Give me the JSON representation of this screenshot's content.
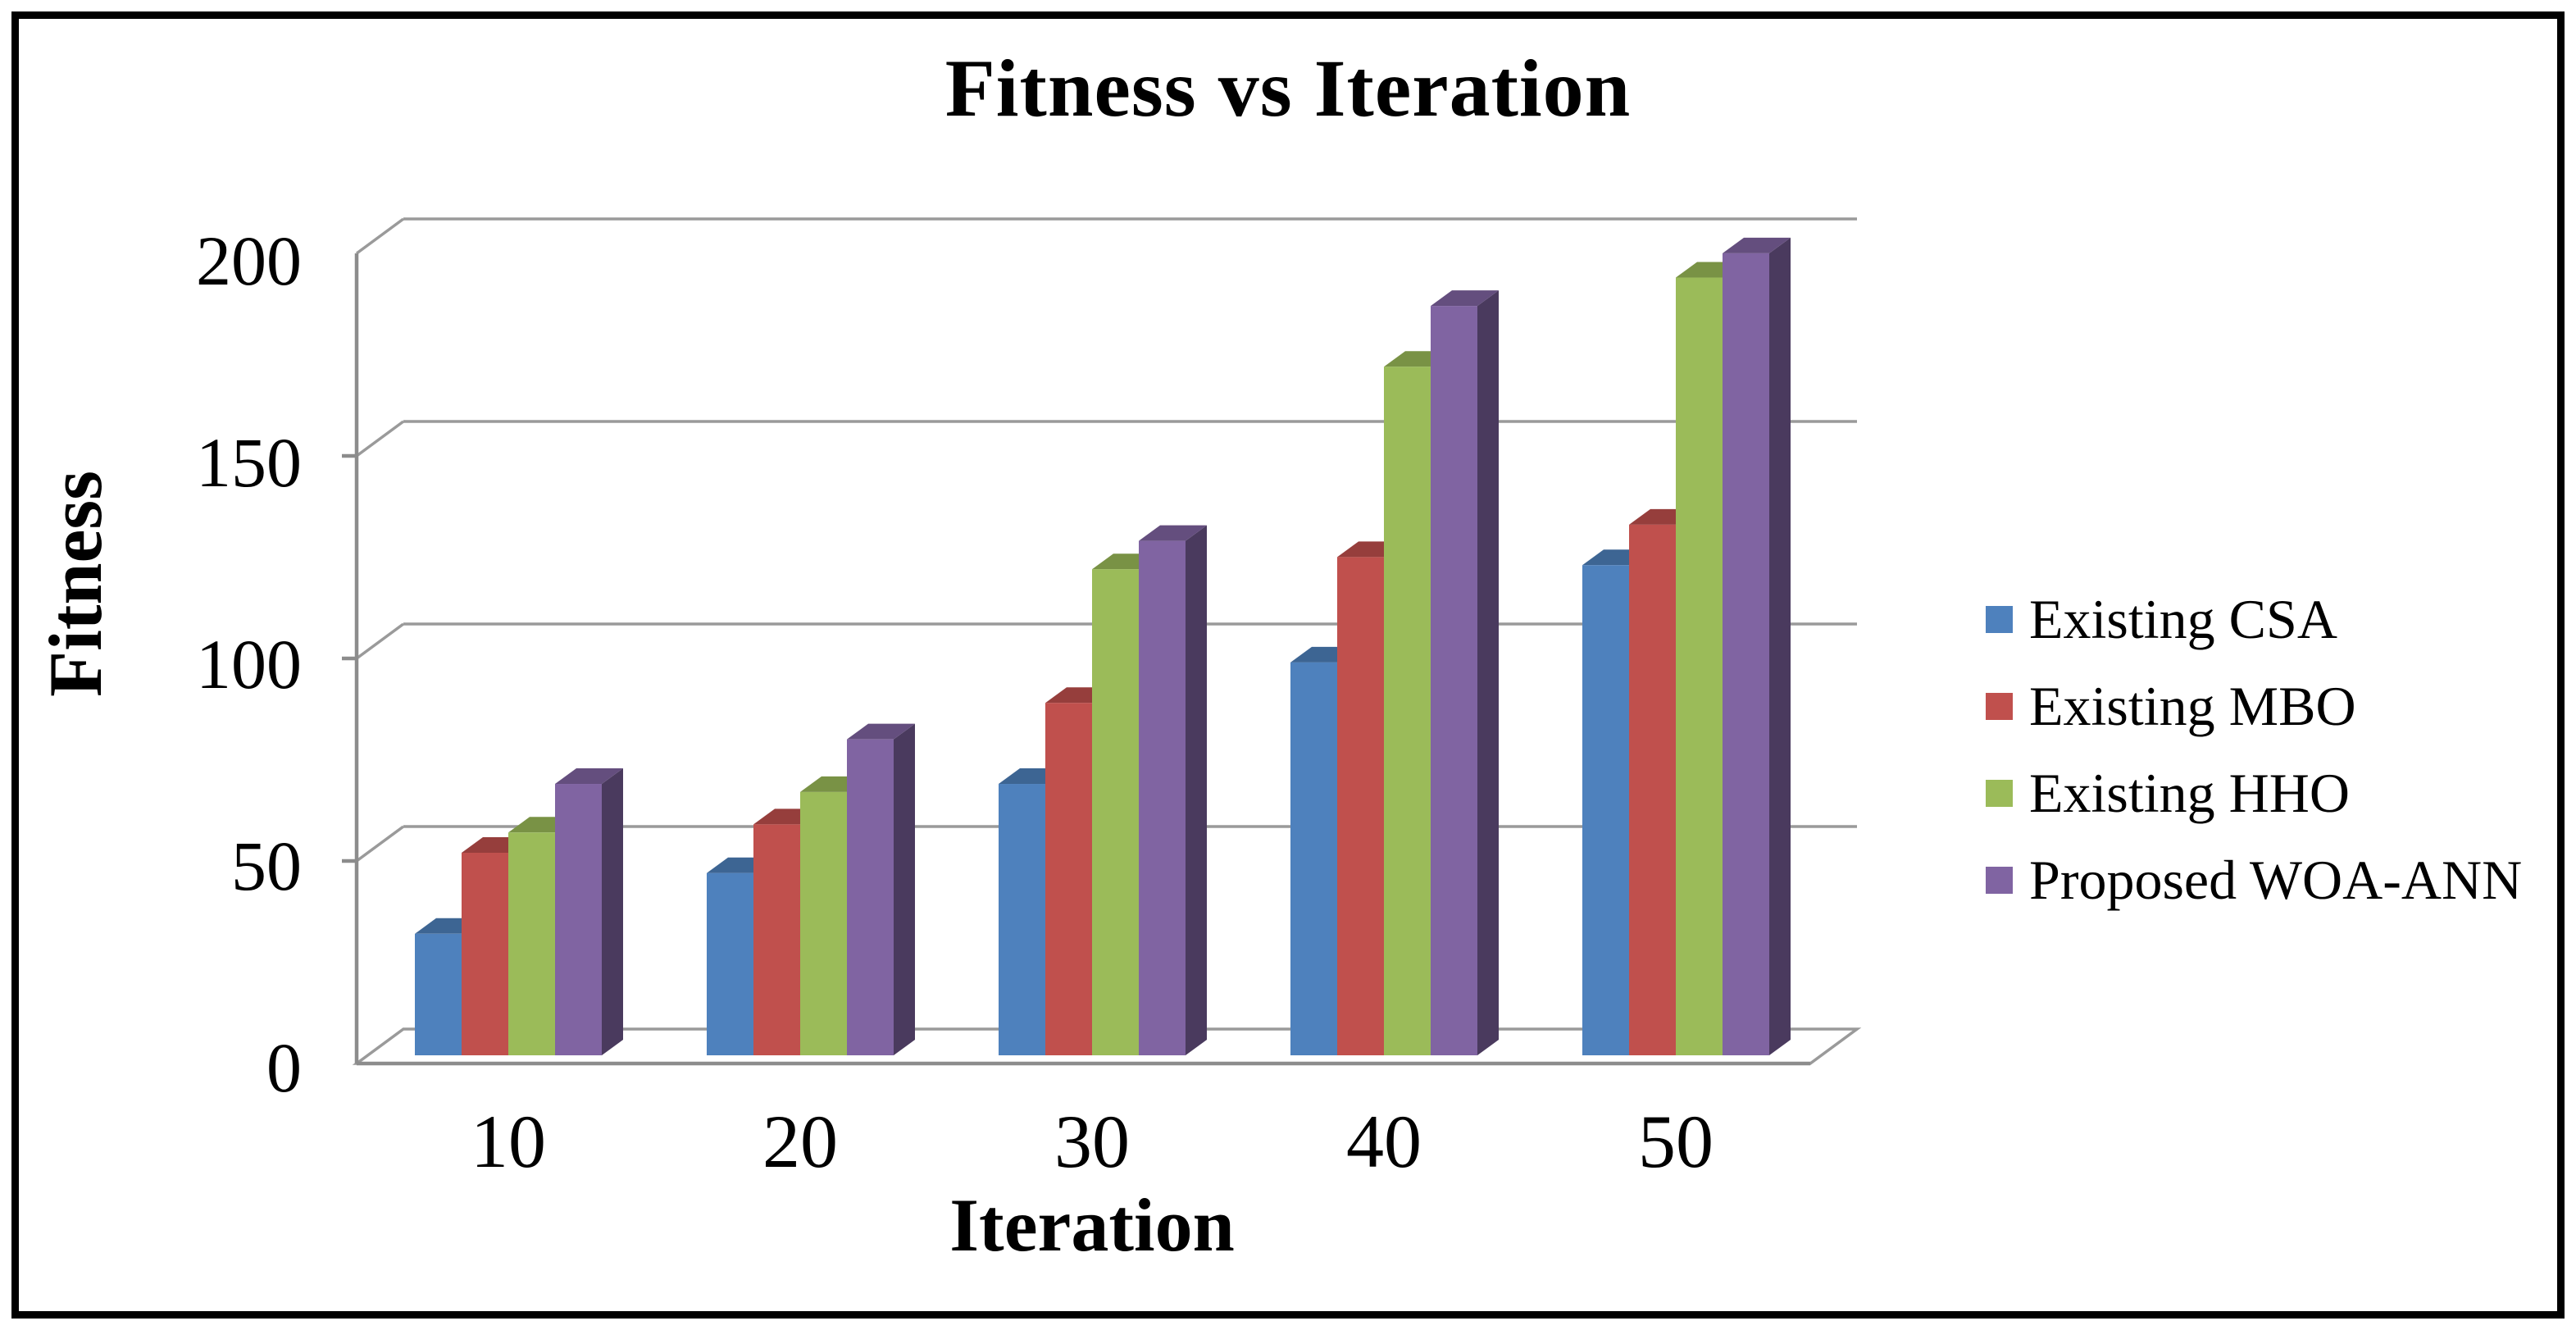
{
  "title": "Fitness vs Iteration",
  "chart_data": {
    "type": "bar",
    "style": "3d-clustered-column",
    "title": "Fitness vs Iteration",
    "xlabel": "Iteration",
    "ylabel": "Fitness",
    "categories": [
      "10",
      "20",
      "30",
      "40",
      "50"
    ],
    "series": [
      {
        "name": "Existing CSA",
        "color": "#4E81BD",
        "values": [
          30,
          45,
          67,
          97,
          121
        ]
      },
      {
        "name": "Existing MBO",
        "color": "#C0504D",
        "values": [
          50,
          57,
          87,
          123,
          131
        ]
      },
      {
        "name": "Existing HHO",
        "color": "#9BBB59",
        "values": [
          55,
          65,
          120,
          170,
          192
        ]
      },
      {
        "name": "Proposed WOA-ANN",
        "color": "#8064A2",
        "values": [
          67,
          78,
          127,
          185,
          198
        ]
      }
    ],
    "yticks": [
      "200",
      "150",
      "100",
      "50",
      "0"
    ],
    "ylim": [
      0,
      200
    ],
    "ytick_step": 50,
    "grid": true,
    "legend_position": "right",
    "grid_color": "#9a9a9a",
    "axis_color": "#8c8c8c",
    "border_color": "#000000"
  }
}
